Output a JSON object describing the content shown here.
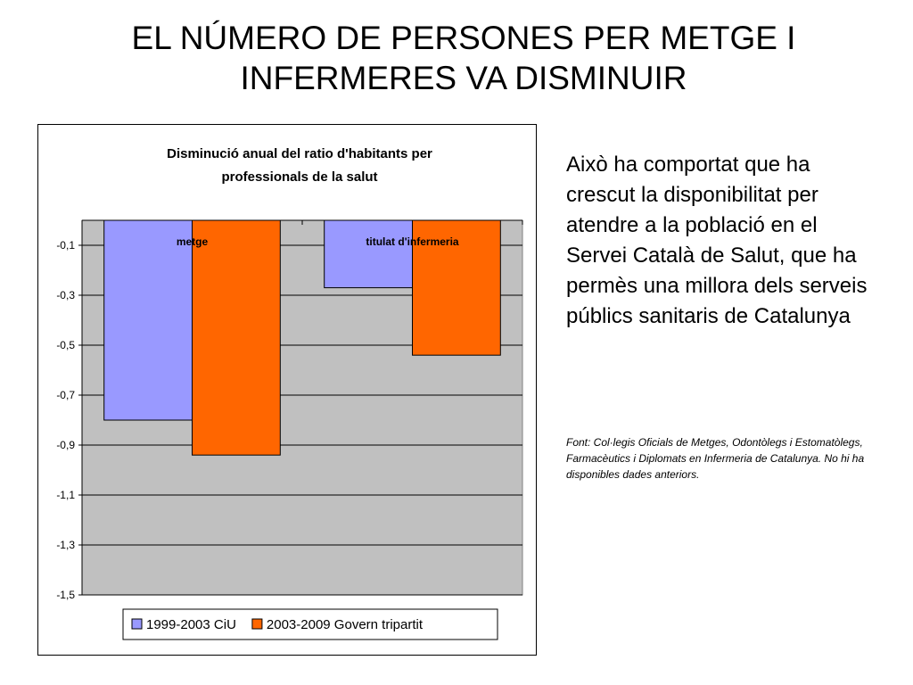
{
  "slide": {
    "title_lines": [
      "EL NÚMERO DE PERSONES PER METGE I",
      "INFERMERES VA DISMINUIR"
    ],
    "body_text": "Això ha comportat que ha crescut la disponibilitat per atendre a la població en el Servei Català de Salut, que ha permès una millora dels serveis públics sanitaris de Catalunya",
    "source_text": "Font: Col·legis Oficials de Metges, Odontòlegs i Estomatòlegs, Farmacèutics i Diplomats en Infermeria de Catalunya. No hi ha disponibles dades anteriors."
  },
  "chart_data": {
    "type": "bar",
    "title_lines": [
      "Disminució anual del ratio d'habitants per",
      "professionals de la salut"
    ],
    "categories": [
      "metge",
      "titulat d'infermeria"
    ],
    "series": [
      {
        "name": "1999-2003 CiU",
        "values": [
          -0.8,
          -0.27
        ],
        "color": "#9999ff"
      },
      {
        "name": "2003-2009 Govern tripartit",
        "values": [
          -0.94,
          -0.54
        ],
        "color": "#ff6600"
      }
    ],
    "ylim": [
      -1.5,
      0
    ],
    "yticks": [
      -0.1,
      -0.3,
      -0.5,
      -0.7,
      -0.9,
      -1.1,
      -1.3,
      -1.5
    ],
    "ytick_labels": [
      "-0,1",
      "-0,3",
      "-0,5",
      "-0,7",
      "-0,9",
      "-1,1",
      "-1,3",
      "-1,5"
    ],
    "grid": true,
    "plot_background": "#c0c0c0",
    "legend_position": "bottom"
  }
}
